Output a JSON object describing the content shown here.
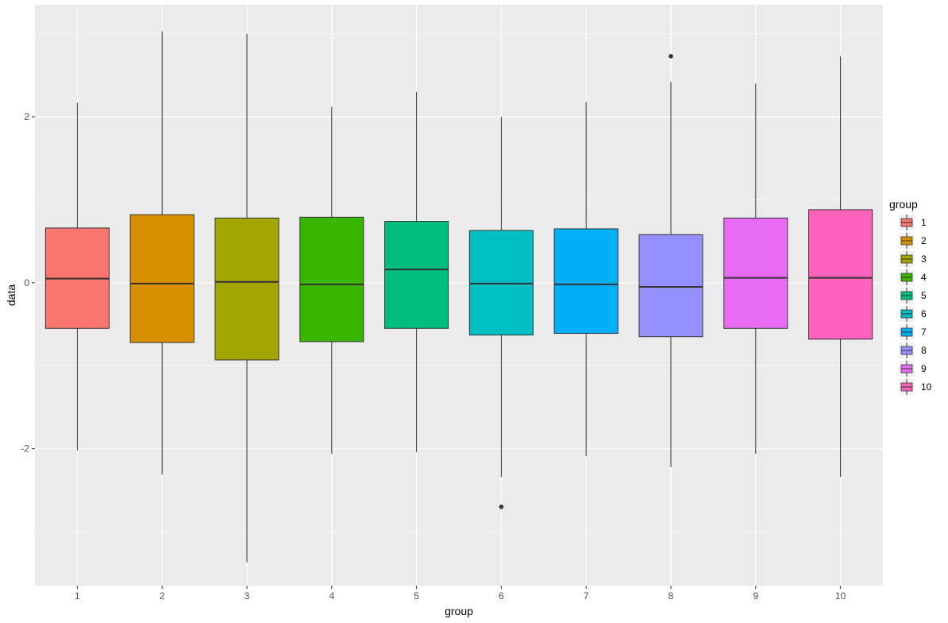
{
  "chart_data": {
    "type": "boxplot",
    "title": "",
    "xlabel": "group",
    "ylabel": "data",
    "ylim": [
      -3.65,
      3.35
    ],
    "yticks": [
      -2,
      0,
      2
    ],
    "ytick_labels": [
      "-2",
      "0",
      "2"
    ],
    "categories": [
      "1",
      "2",
      "3",
      "4",
      "5",
      "6",
      "7",
      "8",
      "9",
      "10"
    ],
    "boxes": [
      {
        "q1": -0.55,
        "median": 0.05,
        "q3": 0.66,
        "whisker_low": -2.02,
        "whisker_high": 2.17,
        "outliers": []
      },
      {
        "q1": -0.72,
        "median": -0.01,
        "q3": 0.82,
        "whisker_low": -2.31,
        "whisker_high": 3.03,
        "outliers": []
      },
      {
        "q1": -0.93,
        "median": 0.01,
        "q3": 0.78,
        "whisker_low": -3.37,
        "whisker_high": 3.0,
        "outliers": []
      },
      {
        "q1": -0.71,
        "median": -0.02,
        "q3": 0.79,
        "whisker_low": -2.06,
        "whisker_high": 2.12,
        "outliers": []
      },
      {
        "q1": -0.55,
        "median": 0.16,
        "q3": 0.74,
        "whisker_low": -2.04,
        "whisker_high": 2.3,
        "outliers": []
      },
      {
        "q1": -0.63,
        "median": -0.01,
        "q3": 0.63,
        "whisker_low": -2.34,
        "whisker_high": 2.0,
        "outliers": [
          -2.7
        ]
      },
      {
        "q1": -0.61,
        "median": -0.02,
        "q3": 0.65,
        "whisker_low": -2.09,
        "whisker_high": 2.18,
        "outliers": []
      },
      {
        "q1": -0.65,
        "median": -0.05,
        "q3": 0.58,
        "whisker_low": -2.22,
        "whisker_high": 2.42,
        "outliers": [
          2.73
        ]
      },
      {
        "q1": -0.55,
        "median": 0.06,
        "q3": 0.78,
        "whisker_low": -2.06,
        "whisker_high": 2.4,
        "outliers": []
      },
      {
        "q1": -0.68,
        "median": 0.06,
        "q3": 0.88,
        "whisker_low": -2.34,
        "whisker_high": 2.73,
        "outliers": []
      }
    ],
    "colors": [
      "#F8766D",
      "#D89000",
      "#A3A500",
      "#39B600",
      "#00BF7D",
      "#00BFC4",
      "#00B0F6",
      "#9590FF",
      "#E76BF3",
      "#FF62BC"
    ],
    "legend": {
      "title": "group",
      "placement": "right",
      "entries": [
        "1",
        "2",
        "3",
        "4",
        "5",
        "6",
        "7",
        "8",
        "9",
        "10"
      ]
    },
    "panel_background": "#EBEBEB",
    "grid": true
  }
}
